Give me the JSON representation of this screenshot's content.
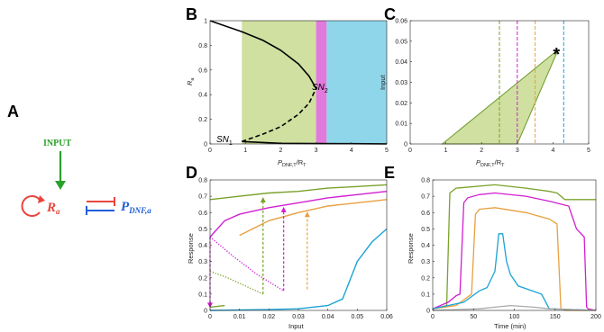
{
  "panel_labels": {
    "a": "A",
    "b": "B",
    "c": "C",
    "d": "D",
    "e": "E"
  },
  "schematic": {
    "input": "INPUT",
    "ra_main": "R",
    "ra_sub": "a",
    "pdnf_main": "P",
    "pdnf_sub": "DNF,a",
    "colors": {
      "input": "#2ca02c",
      "ra": "#e8453c",
      "pdnf": "#1f5fd6"
    }
  },
  "annotations": {
    "sn1_main": "SN",
    "sn1_sub": "1",
    "sn2_main": "SN",
    "sn2_sub": "2",
    "star": "*"
  },
  "chart_data": [
    {
      "panel": "B",
      "type": "line",
      "xlabel_main": "P",
      "xlabel_sub1": "DNF,T",
      "xlabel_mid": "/R",
      "xlabel_sub2": "T",
      "ylabel_main": "R",
      "ylabel_sub": "a",
      "xlim": [
        0,
        5
      ],
      "ylim": [
        0,
        1
      ],
      "xticks": [
        "0",
        "1",
        "2",
        "3",
        "4",
        "5"
      ],
      "yticks": [
        "0",
        "0.2",
        "0.4",
        "0.6",
        "0.8",
        "1"
      ],
      "regions": [
        {
          "x": [
            0.9,
            3.0
          ],
          "color": "#cfe0a0"
        },
        {
          "x": [
            3.0,
            3.3
          ],
          "color": "#e279dc"
        },
        {
          "x": [
            3.3,
            5.0
          ],
          "color": "#8fd6ea"
        }
      ],
      "series": [
        {
          "style": "solid",
          "x": [
            0,
            0.9,
            1.5,
            2.0,
            2.5,
            2.8,
            3.0
          ],
          "y": [
            1,
            0.91,
            0.84,
            0.76,
            0.65,
            0.55,
            0.45
          ]
        },
        {
          "style": "dashed",
          "x": [
            0.9,
            1.5,
            2.0,
            2.5,
            2.8,
            3.0
          ],
          "y": [
            0.02,
            0.08,
            0.14,
            0.24,
            0.33,
            0.45
          ]
        },
        {
          "style": "solid",
          "x": [
            0.9,
            2.0,
            3.0,
            4.0,
            5.0
          ],
          "y": [
            0.02,
            0.005,
            0.003,
            0.002,
            0.001
          ]
        }
      ]
    },
    {
      "panel": "C",
      "type": "area",
      "xlabel_main": "P",
      "xlabel_sub1": "DNF,T",
      "xlabel_mid": "/R",
      "xlabel_sub2": "T",
      "ylabel": "Input",
      "xlim": [
        0,
        5
      ],
      "ylim": [
        0,
        0.06
      ],
      "xticks": [
        "0",
        "1",
        "2",
        "3",
        "4",
        "5"
      ],
      "yticks": [
        "0",
        "0.01",
        "0.02",
        "0.03",
        "0.04",
        "0.05",
        "0.06"
      ],
      "region_boundary": {
        "upper": {
          "x": [
            0.9,
            4.15
          ],
          "y": [
            0,
            0.046
          ]
        },
        "lower": {
          "x": [
            3.0,
            4.15
          ],
          "y": [
            0,
            0.046
          ]
        }
      },
      "vlines": [
        {
          "x": 2.5,
          "color": "#7aa22a"
        },
        {
          "x": 3.0,
          "color": "#d11fd1"
        },
        {
          "x": 3.5,
          "color": "#e8a040"
        },
        {
          "x": 4.3,
          "color": "#1aa3d6"
        }
      ],
      "star": {
        "x": 4.15,
        "y": 0.046
      }
    },
    {
      "panel": "D",
      "type": "line",
      "xlabel": "Input",
      "ylabel": "Response",
      "xlim": [
        0,
        0.06
      ],
      "ylim": [
        0,
        0.8
      ],
      "xticks": [
        "0",
        "0.01",
        "0.02",
        "0.03",
        "0.04",
        "0.05",
        "0.06"
      ],
      "yticks": [
        "0",
        "0.1",
        "0.2",
        "0.3",
        "0.4",
        "0.5",
        "0.6",
        "0.7",
        "0.8"
      ],
      "series": [
        {
          "color": "#7aa22a",
          "style": "solid",
          "x": [
            0,
            0.01,
            0.02,
            0.03,
            0.04,
            0.05,
            0.06
          ],
          "y": [
            0.68,
            0.7,
            0.72,
            0.73,
            0.75,
            0.76,
            0.77
          ]
        },
        {
          "color": "#7aa22a",
          "style": "dotted",
          "x": [
            0,
            0.006,
            0.012,
            0.018
          ],
          "y": [
            0.24,
            0.2,
            0.15,
            0.1
          ]
        },
        {
          "color": "#7aa22a",
          "style": "solid",
          "x": [
            0,
            0.005
          ],
          "y": [
            0.02,
            0.03
          ]
        },
        {
          "color": "#d11fd1",
          "style": "solid",
          "x": [
            0,
            0.005,
            0.01,
            0.02,
            0.03,
            0.04,
            0.05,
            0.06
          ],
          "y": [
            0.45,
            0.55,
            0.59,
            0.63,
            0.66,
            0.69,
            0.71,
            0.73
          ]
        },
        {
          "color": "#d11fd1",
          "style": "dotted",
          "x": [
            0,
            0.008,
            0.016,
            0.025
          ],
          "y": [
            0.45,
            0.33,
            0.22,
            0.12
          ]
        },
        {
          "color": "#e8a040",
          "style": "solid",
          "x": [
            0.01,
            0.02,
            0.03,
            0.04,
            0.05,
            0.06
          ],
          "y": [
            0.46,
            0.55,
            0.6,
            0.64,
            0.66,
            0.68
          ]
        },
        {
          "color": "#1aa3d6",
          "style": "solid",
          "x": [
            0,
            0.02,
            0.03,
            0.04,
            0.045,
            0.05,
            0.055,
            0.06
          ],
          "y": [
            0,
            0.005,
            0.01,
            0.03,
            0.07,
            0.3,
            0.42,
            0.5
          ]
        }
      ],
      "arrows": [
        {
          "color": "#7aa22a",
          "x": 0.018,
          "from": 0.1,
          "to": 0.69,
          "dir": "up"
        },
        {
          "color": "#d11fd1",
          "x": 0.025,
          "from": 0.12,
          "to": 0.63,
          "dir": "up"
        },
        {
          "color": "#e8a040",
          "x": 0.033,
          "from": 0.13,
          "to": 0.6,
          "dir": "up"
        },
        {
          "color": "#d11fd1",
          "x": 0.0,
          "from": 0.45,
          "to": 0.02,
          "dir": "down"
        }
      ]
    },
    {
      "panel": "E",
      "type": "line",
      "xlabel": "Time (min)",
      "ylabel": "Response",
      "xlim": [
        0,
        210
      ],
      "ylim": [
        0,
        0.8
      ],
      "xticks": [
        "0",
        "50",
        "100",
        "150",
        "200"
      ],
      "yticks": [
        "0",
        "0.1",
        "0.2",
        "0.3",
        "0.4",
        "0.5",
        "0.6",
        "0.7",
        "0.8"
      ],
      "series": [
        {
          "color": "#7aa22a",
          "x": [
            0,
            18,
            22,
            30,
            80,
            120,
            150,
            160,
            170,
            210
          ],
          "y": [
            0.01,
            0.03,
            0.72,
            0.75,
            0.77,
            0.75,
            0.73,
            0.72,
            0.68,
            0.68
          ]
        },
        {
          "color": "#d11fd1",
          "x": [
            0,
            20,
            30,
            35,
            40,
            45,
            60,
            80,
            120,
            150,
            175,
            185,
            195,
            198,
            200,
            210
          ],
          "y": [
            0.01,
            0.05,
            0.09,
            0.1,
            0.66,
            0.69,
            0.71,
            0.72,
            0.7,
            0.67,
            0.64,
            0.5,
            0.45,
            0.02,
            0.01,
            0.0
          ]
        },
        {
          "color": "#e8a040",
          "x": [
            0,
            30,
            50,
            55,
            60,
            80,
            120,
            150,
            160,
            165,
            170,
            210
          ],
          "y": [
            0.01,
            0.03,
            0.1,
            0.59,
            0.62,
            0.63,
            0.6,
            0.56,
            0.53,
            0.01,
            0.0,
            0.0
          ]
        },
        {
          "color": "#1aa3d6",
          "x": [
            0,
            40,
            60,
            70,
            80,
            85,
            90,
            95,
            100,
            110,
            140,
            150,
            210
          ],
          "y": [
            0.01,
            0.05,
            0.12,
            0.14,
            0.24,
            0.47,
            0.47,
            0.3,
            0.22,
            0.15,
            0.1,
            0.01,
            0.0
          ]
        },
        {
          "color": "#aaaaaa",
          "x": [
            0,
            60,
            80,
            100,
            130,
            150,
            210
          ],
          "y": [
            0.0,
            0.01,
            0.02,
            0.03,
            0.02,
            0.01,
            0.0
          ]
        }
      ]
    }
  ]
}
